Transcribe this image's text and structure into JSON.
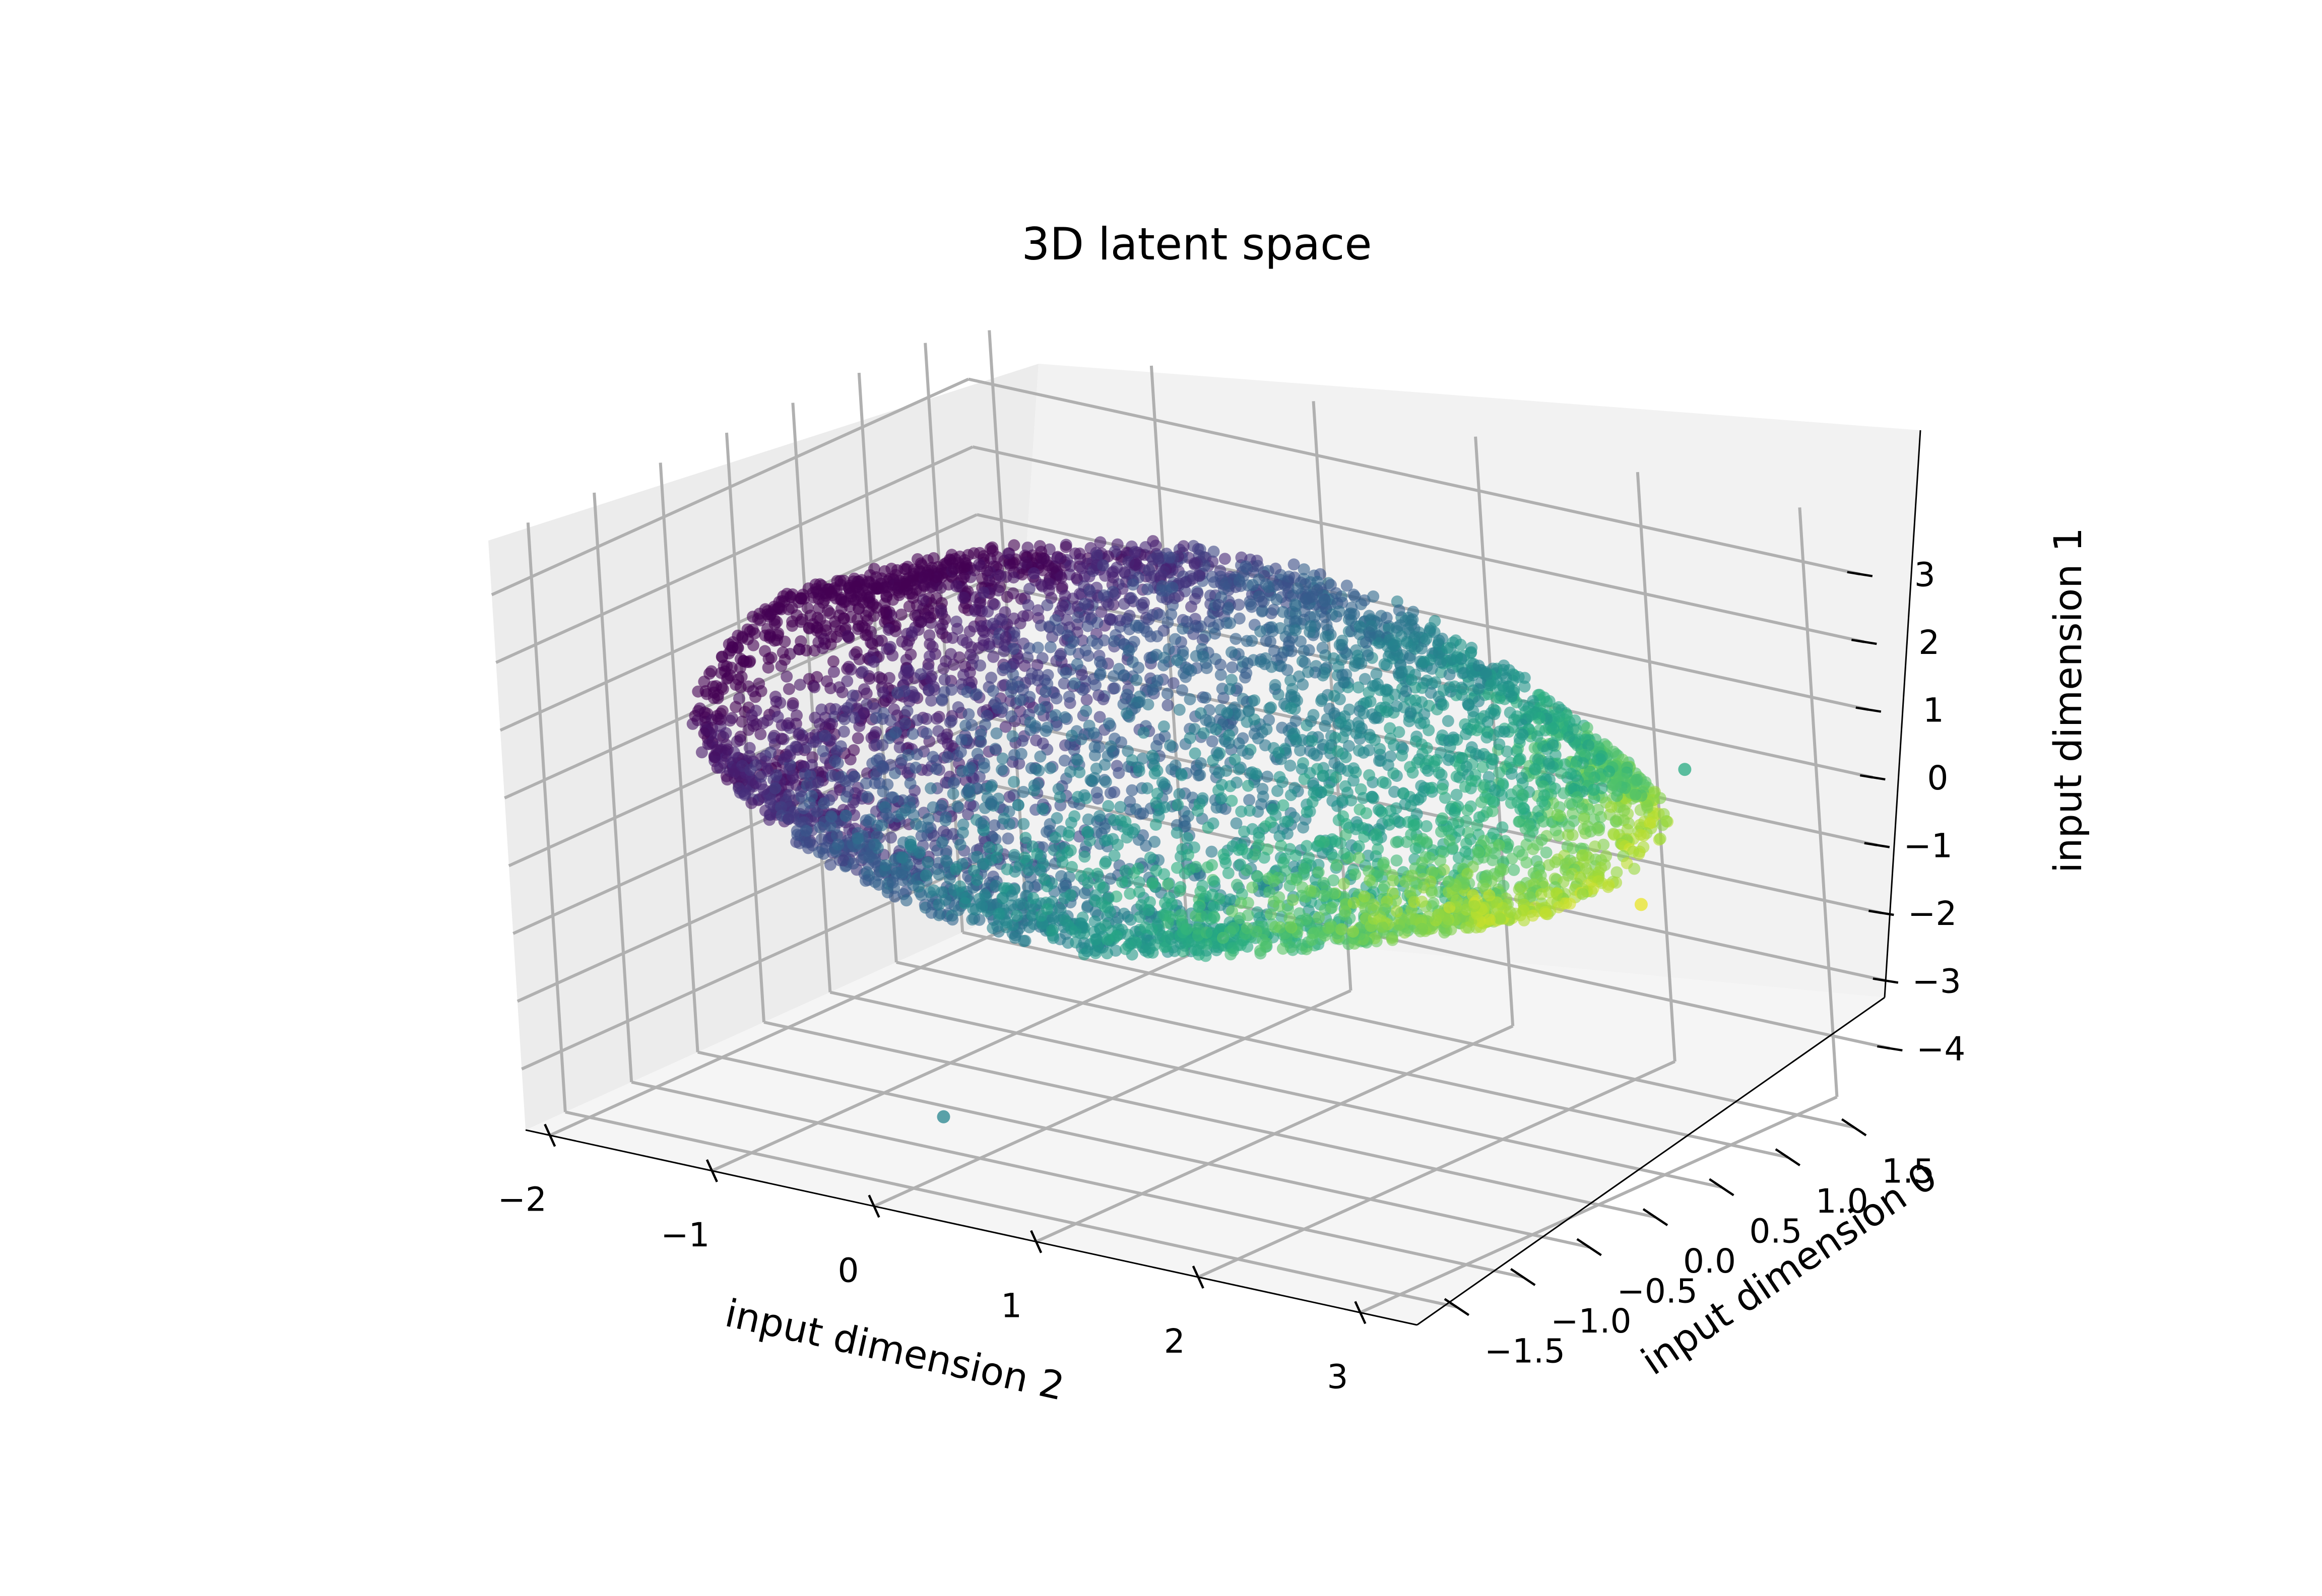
{
  "chart_data": {
    "type": "scatter",
    "projection": "3d",
    "title": "3D latent space",
    "xlabel": "input dimension 2",
    "ylabel": "input dimension 0",
    "zlabel": "input dimension 1",
    "x_ticks": [
      "−2",
      "−1",
      "0",
      "1",
      "2",
      "3"
    ],
    "y_ticks": [
      "−1.5",
      "−1.0",
      "−0.5",
      "0.0",
      "0.5",
      "1.0",
      "1.5"
    ],
    "z_ticks": [
      "3",
      "2",
      "1",
      "0",
      "−1",
      "−2",
      "−3",
      "−4"
    ],
    "xlim": [
      -2,
      3.3
    ],
    "ylim": [
      -1.8,
      1.8
    ],
    "zlim": [
      -4.8,
      3.5
    ],
    "grid": true,
    "colormap": "viridis",
    "colors": {
      "pane_left": "#ececec",
      "pane_back": "#f2f2f2",
      "pane_floor": "#f5f5f5",
      "grid": "#b0b0b0",
      "viridis_low": "#440154",
      "viridis_high": "#fde725"
    },
    "cloud": {
      "description_of_points": "dense shell-shaped cloud of several thousand points",
      "x_range": [
        -2,
        3
      ],
      "y_range": [
        -1.6,
        1.6
      ],
      "z_range": [
        -3.5,
        3.5
      ],
      "color_trend": "purple at x≈-2, teal in middle, yellow-green at x≈3"
    },
    "outliers": [
      {
        "x": 3.2,
        "y": 0.6,
        "z": 1.1,
        "c": 0.62
      },
      {
        "x": 3.3,
        "y": 0.1,
        "z": -0.4,
        "c": 0.97
      },
      {
        "x": 0.3,
        "y": -1.6,
        "z": -3.6,
        "c": 0.45
      }
    ]
  }
}
